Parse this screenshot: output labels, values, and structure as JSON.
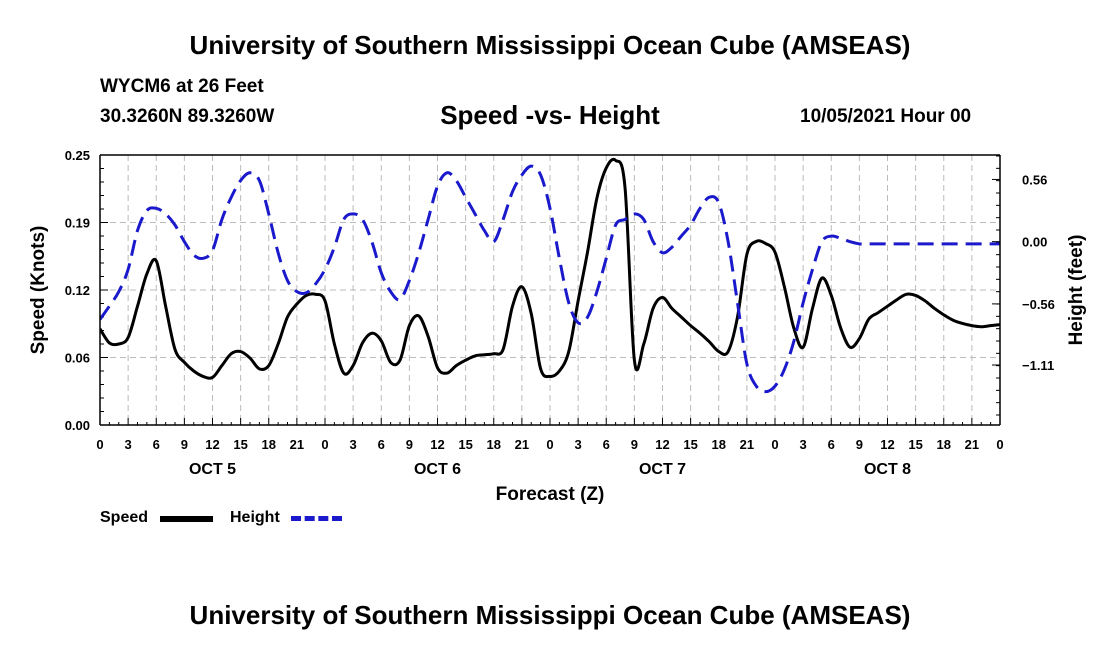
{
  "header": {
    "title": "University of Southern Mississippi Ocean Cube (AMSEAS)",
    "station": "WYCM6 at 26 Feet",
    "coords": "30.3260N  89.3260W",
    "plot_title": "Speed -vs- Height",
    "datetime": "10/05/2021 Hour 00"
  },
  "footer": {
    "title": "University of Southern Mississippi Ocean Cube (AMSEAS)"
  },
  "legend": {
    "speed_label": "Speed",
    "height_label": "Height"
  },
  "colors": {
    "speed": "#000000",
    "height": "#1a1acc",
    "grid": "#bbbbbb"
  },
  "chart_data": {
    "type": "line",
    "title": "Speed -vs- Height",
    "xlabel": "Forecast (Z)",
    "ylabel_left": "Speed (Knots)",
    "ylabel_right": "Height (feet)",
    "x_range": [
      0,
      96
    ],
    "ylim_left": [
      0.0,
      0.25
    ],
    "ylim_right": [
      -1.65,
      0.78
    ],
    "left_ticks": [
      "0.00",
      "0.06",
      "0.12",
      "0.19",
      "0.25"
    ],
    "left_tick_values": [
      0.0,
      0.0625,
      0.125,
      0.1875,
      0.25
    ],
    "right_ticks": [
      "−1.11",
      "−0.56",
      "0.00",
      "0.56"
    ],
    "right_tick_values": [
      -1.11,
      -0.56,
      0.0,
      0.56
    ],
    "x_tick_labels": [
      "0",
      "3",
      "6",
      "9",
      "12",
      "15",
      "18",
      "21",
      "0",
      "3",
      "6",
      "9",
      "12",
      "15",
      "18",
      "21",
      "0",
      "3",
      "6",
      "9",
      "12",
      "15",
      "18",
      "21",
      "0",
      "3",
      "6",
      "9",
      "12",
      "15",
      "18",
      "21",
      "0"
    ],
    "day_labels": [
      "OCT 5",
      "OCT 6",
      "OCT 7",
      "OCT 8"
    ],
    "day_label_hours": [
      12,
      36,
      60,
      84
    ],
    "grid": true,
    "legend_position": "bottom-left",
    "series": [
      {
        "name": "Speed",
        "axis": "left",
        "style": "solid",
        "x": [
          0,
          1,
          2,
          3,
          4,
          5,
          6,
          7,
          8,
          9,
          10,
          11,
          12,
          13,
          14,
          15,
          16,
          17,
          18,
          19,
          20,
          21,
          22,
          23,
          24,
          25,
          26,
          27,
          28,
          29,
          30,
          31,
          32,
          33,
          34,
          35,
          36,
          37,
          38,
          39,
          40,
          41,
          42,
          43,
          44,
          45,
          46,
          47,
          48,
          49,
          50,
          51,
          52,
          53,
          54,
          55,
          56,
          57,
          58,
          59,
          60,
          61,
          62,
          63,
          64,
          65,
          66,
          67,
          68,
          69,
          70,
          71,
          72,
          73,
          74,
          75,
          76,
          77,
          78,
          79,
          80,
          81,
          82,
          83,
          84,
          85,
          86,
          87,
          88,
          89,
          90,
          91,
          92,
          93,
          94,
          95,
          96
        ],
        "values": [
          0.089,
          0.076,
          0.075,
          0.081,
          0.11,
          0.14,
          0.152,
          0.11,
          0.07,
          0.058,
          0.05,
          0.045,
          0.044,
          0.055,
          0.066,
          0.068,
          0.062,
          0.052,
          0.055,
          0.075,
          0.1,
          0.112,
          0.12,
          0.121,
          0.115,
          0.075,
          0.048,
          0.055,
          0.076,
          0.085,
          0.078,
          0.058,
          0.06,
          0.092,
          0.101,
          0.082,
          0.053,
          0.048,
          0.055,
          0.06,
          0.064,
          0.065,
          0.066,
          0.07,
          0.11,
          0.128,
          0.103,
          0.052,
          0.045,
          0.05,
          0.068,
          0.115,
          0.16,
          0.21,
          0.238,
          0.245,
          0.22,
          0.06,
          0.075,
          0.108,
          0.118,
          0.108,
          0.1,
          0.092,
          0.085,
          0.077,
          0.068,
          0.068,
          0.1,
          0.158,
          0.17,
          0.168,
          0.16,
          0.128,
          0.09,
          0.072,
          0.108,
          0.136,
          0.12,
          0.09,
          0.072,
          0.08,
          0.098,
          0.104,
          0.11,
          0.116,
          0.121,
          0.12,
          0.115,
          0.108,
          0.102,
          0.097,
          0.094,
          0.092,
          0.091,
          0.092,
          0.093
        ]
      },
      {
        "name": "Height",
        "axis": "right",
        "style": "dashed",
        "x": [
          0,
          1,
          2,
          3,
          4,
          5,
          6,
          7,
          8,
          9,
          10,
          11,
          12,
          13,
          14,
          15,
          16,
          17,
          18,
          19,
          20,
          21,
          22,
          23,
          24,
          25,
          26,
          27,
          28,
          29,
          30,
          31,
          32,
          33,
          34,
          35,
          36,
          37,
          38,
          39,
          40,
          41,
          42,
          43,
          44,
          45,
          46,
          47,
          48,
          49,
          50,
          51,
          52,
          53,
          54,
          55,
          56,
          57,
          58,
          59,
          60,
          61,
          62,
          63,
          64,
          65,
          66,
          67,
          68,
          69,
          70,
          71,
          72,
          73,
          74,
          75,
          76,
          77,
          78,
          79,
          80,
          81,
          82,
          83,
          84,
          85,
          86,
          87,
          88,
          89,
          90,
          91,
          92,
          93,
          94,
          95,
          96
        ],
        "values": [
          -0.7,
          -0.58,
          -0.45,
          -0.25,
          0.1,
          0.28,
          0.3,
          0.25,
          0.15,
          0.0,
          -0.12,
          -0.15,
          -0.08,
          0.2,
          0.4,
          0.55,
          0.62,
          0.55,
          0.25,
          -0.1,
          -0.35,
          -0.45,
          -0.46,
          -0.38,
          -0.25,
          -0.05,
          0.2,
          0.25,
          0.2,
          0.0,
          -0.28,
          -0.45,
          -0.52,
          -0.35,
          -0.1,
          0.2,
          0.5,
          0.62,
          0.55,
          0.4,
          0.25,
          0.1,
          0.0,
          0.2,
          0.45,
          0.6,
          0.68,
          0.6,
          0.3,
          -0.15,
          -0.55,
          -0.73,
          -0.68,
          -0.45,
          -0.15,
          0.15,
          0.2,
          0.25,
          0.2,
          0.0,
          -0.1,
          -0.05,
          0.05,
          0.15,
          0.3,
          0.4,
          0.35,
          0.0,
          -0.55,
          -1.1,
          -1.3,
          -1.35,
          -1.3,
          -1.15,
          -0.9,
          -0.55,
          -0.25,
          0.0,
          0.05,
          0.03,
          0.0,
          -0.02,
          -0.02,
          -0.02,
          -0.02,
          -0.02,
          -0.02,
          -0.02,
          -0.02,
          -0.02,
          -0.02,
          -0.02,
          -0.02,
          -0.02,
          -0.02,
          -0.02,
          -0.02
        ]
      }
    ]
  }
}
